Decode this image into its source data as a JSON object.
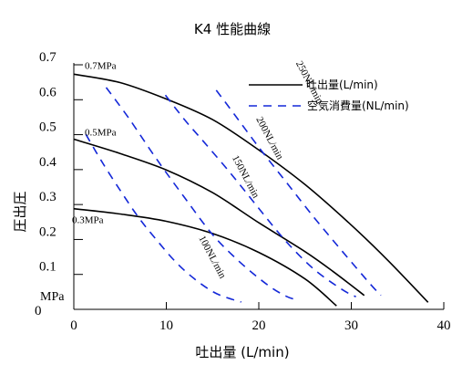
{
  "chart_data": {
    "type": "line",
    "title": "K4 性能曲線",
    "xlabel": "吐出量 (L/min)",
    "ylabel": "圧出圧",
    "y_unit_label": "MPa",
    "origin_label": "0",
    "xlim": [
      0,
      40
    ],
    "ylim": [
      0,
      0.7
    ],
    "x_ticks": [
      "0",
      "10",
      "20",
      "30",
      "40"
    ],
    "x_tick_values": [
      0,
      10,
      20,
      30,
      40
    ],
    "y_ticks": [
      "0.1",
      "0.2",
      "0.3",
      "0.4",
      "0.5",
      "0.6",
      "0.7"
    ],
    "y_tick_values": [
      0.1,
      0.2,
      0.3,
      0.4,
      0.5,
      0.6,
      0.7
    ],
    "legend": [
      {
        "label": "吐出量(L/min)",
        "style": "solid",
        "color": "#000000"
      },
      {
        "label": "空気消費量(NL/min)",
        "style": "dashed",
        "color": "#0000cc"
      }
    ],
    "discharge_curves": [
      {
        "label": "0.7MPa",
        "x": [
          0,
          5,
          10,
          15,
          20,
          25,
          30,
          34,
          38.3
        ],
        "y": [
          0.673,
          0.649,
          0.602,
          0.543,
          0.456,
          0.357,
          0.241,
          0.139,
          0.02
        ]
      },
      {
        "label": "0.5MPa",
        "x": [
          0,
          5,
          10,
          15,
          20,
          25,
          28,
          31.4
        ],
        "y": [
          0.487,
          0.446,
          0.399,
          0.334,
          0.248,
          0.165,
          0.109,
          0.04
        ]
      },
      {
        "label": "0.3MPa",
        "x": [
          0,
          5,
          10,
          15,
          20,
          25,
          28.4
        ],
        "y": [
          0.288,
          0.273,
          0.252,
          0.217,
          0.163,
          0.087,
          0.01
        ]
      }
    ],
    "air_curves": [
      {
        "label": "100NL/min",
        "x": [
          1.3,
          3,
          5,
          7,
          9,
          11,
          13,
          15,
          16.5,
          18.1
        ],
        "y": [
          0.501,
          0.424,
          0.341,
          0.263,
          0.197,
          0.136,
          0.088,
          0.051,
          0.034,
          0.021
        ]
      },
      {
        "label": "150NL/min",
        "x": [
          3.5,
          6,
          9,
          12,
          15,
          18,
          21,
          23,
          24.3
        ],
        "y": [
          0.635,
          0.545,
          0.428,
          0.319,
          0.214,
          0.134,
          0.069,
          0.037,
          0.026
        ]
      },
      {
        "label": "200NL/min",
        "x": [
          9.9,
          12,
          14,
          17,
          20,
          23,
          26,
          29,
          30.5
        ],
        "y": [
          0.613,
          0.542,
          0.481,
          0.388,
          0.289,
          0.193,
          0.114,
          0.057,
          0.036
        ]
      },
      {
        "label": "250NL/min",
        "x": [
          15.4,
          17,
          20,
          23,
          26,
          29,
          32,
          33.2
        ],
        "y": [
          0.627,
          0.571,
          0.464,
          0.363,
          0.262,
          0.167,
          0.074,
          0.04
        ]
      }
    ]
  }
}
